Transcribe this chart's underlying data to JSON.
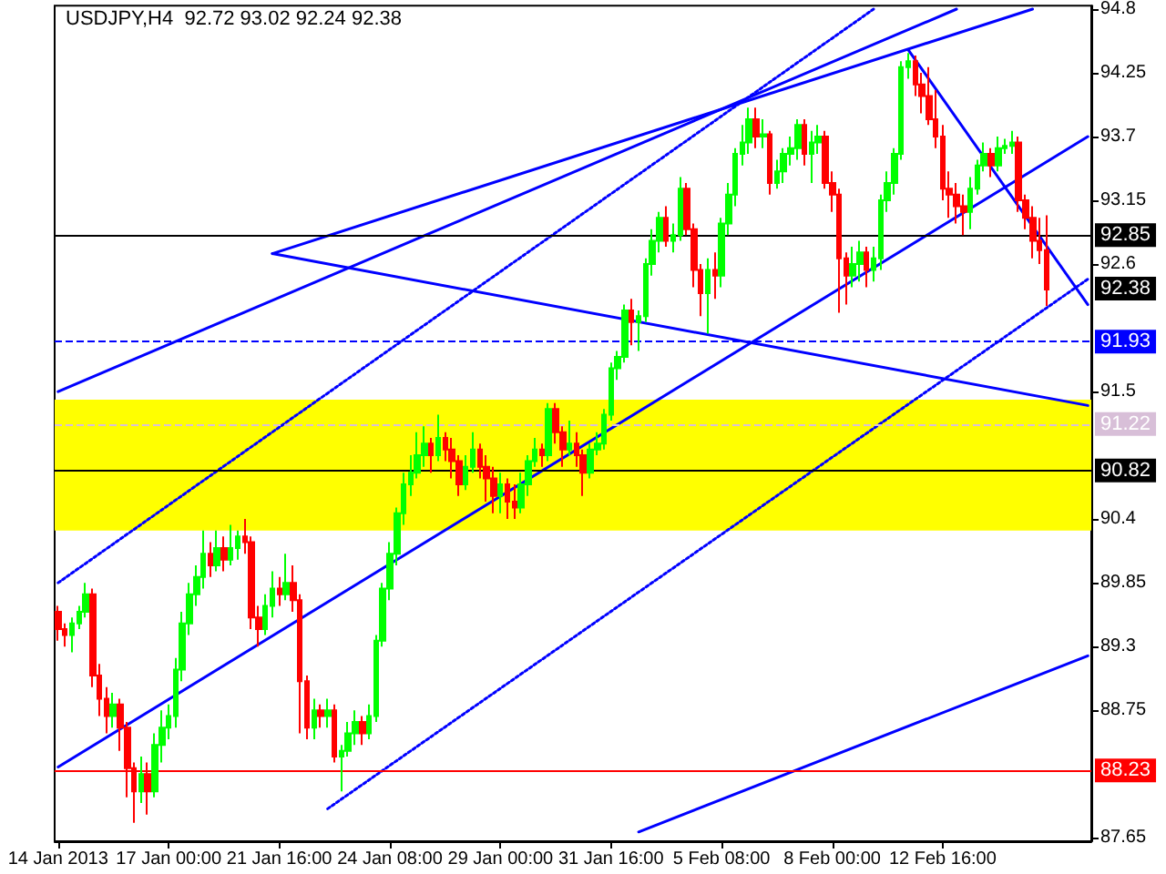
{
  "chart_data": {
    "type": "candlestick",
    "title": "USDJPY,H4  92.72 93.02 92.24 92.38",
    "categories": [
      "14 Jan 2013",
      null,
      null,
      null,
      null,
      null,
      null,
      null,
      null,
      null,
      null,
      null,
      null,
      null,
      null,
      null,
      "17 Jan 00:00",
      null,
      null,
      null,
      null,
      null,
      null,
      null,
      null,
      null,
      null,
      null,
      null,
      null,
      null,
      null,
      "21 Jan 16:00",
      null,
      null,
      null,
      null,
      null,
      null,
      null,
      null,
      null,
      null,
      null,
      null,
      null,
      null,
      null,
      "24 Jan 08:00",
      null,
      null,
      null,
      null,
      null,
      null,
      null,
      null,
      null,
      null,
      null,
      null,
      null,
      null,
      null,
      "29 Jan 00:00",
      null,
      null,
      null,
      null,
      null,
      null,
      null,
      null,
      null,
      null,
      null,
      null,
      null,
      null,
      null,
      "31 Jan 16:00",
      null,
      null,
      null,
      null,
      null,
      null,
      null,
      null,
      null,
      null,
      null,
      null,
      null,
      null,
      null,
      "5 Feb 08:00",
      null,
      null,
      null,
      null,
      null,
      null,
      null,
      null,
      null,
      null,
      null,
      null,
      null,
      null,
      null,
      "8 Feb 00:00",
      null,
      null,
      null,
      null,
      null,
      null,
      null,
      null,
      null,
      null,
      null,
      null,
      null,
      null,
      null,
      "12 Feb 16:00",
      null,
      null,
      null,
      null,
      null,
      null,
      null,
      null,
      null,
      null,
      null,
      null,
      null,
      null,
      null,
      null,
      null,
      null,
      null,
      null,
      null
    ],
    "ohlc": [
      [
        89.6,
        89.65,
        89.35,
        89.45
      ],
      [
        89.45,
        89.5,
        89.3,
        89.4
      ],
      [
        89.4,
        89.55,
        89.25,
        89.5
      ],
      [
        89.5,
        89.65,
        89.45,
        89.6
      ],
      [
        89.6,
        89.85,
        89.55,
        89.75
      ],
      [
        89.75,
        89.8,
        88.95,
        89.05
      ],
      [
        89.05,
        89.15,
        88.7,
        88.85
      ],
      [
        88.85,
        88.95,
        88.55,
        88.7
      ],
      [
        88.7,
        88.9,
        88.6,
        88.8
      ],
      [
        88.8,
        88.85,
        88.4,
        88.6
      ],
      [
        88.6,
        88.65,
        88.0,
        88.25
      ],
      [
        88.25,
        88.3,
        87.78,
        88.05
      ],
      [
        88.05,
        88.35,
        87.95,
        88.2
      ],
      [
        88.2,
        88.3,
        87.85,
        88.05
      ],
      [
        88.05,
        88.55,
        88.0,
        88.45
      ],
      [
        88.45,
        88.75,
        88.3,
        88.6
      ],
      [
        88.6,
        88.8,
        88.5,
        88.7
      ],
      [
        88.7,
        89.2,
        88.6,
        89.1
      ],
      [
        89.1,
        89.6,
        89.0,
        89.5
      ],
      [
        89.5,
        89.85,
        89.4,
        89.75
      ],
      [
        89.75,
        90.0,
        89.65,
        89.9
      ],
      [
        89.9,
        90.3,
        89.8,
        90.1
      ],
      [
        90.1,
        90.2,
        89.9,
        90.0
      ],
      [
        90.0,
        90.3,
        89.95,
        90.15
      ],
      [
        90.15,
        90.25,
        89.95,
        90.05
      ],
      [
        90.05,
        90.35,
        90.0,
        90.15
      ],
      [
        90.15,
        90.3,
        90.05,
        90.25
      ],
      [
        90.25,
        90.4,
        90.1,
        90.2
      ],
      [
        90.2,
        90.25,
        89.45,
        89.55
      ],
      [
        89.55,
        89.65,
        89.3,
        89.45
      ],
      [
        89.45,
        89.75,
        89.4,
        89.65
      ],
      [
        89.65,
        89.95,
        89.55,
        89.8
      ],
      [
        89.8,
        89.9,
        89.65,
        89.75
      ],
      [
        89.75,
        90.1,
        89.7,
        89.85
      ],
      [
        89.85,
        90.0,
        89.6,
        89.7
      ],
      [
        89.7,
        89.75,
        88.55,
        89.0
      ],
      [
        89.0,
        89.05,
        88.5,
        88.6
      ],
      [
        88.6,
        88.85,
        88.5,
        88.75
      ],
      [
        88.75,
        88.8,
        88.6,
        88.7
      ],
      [
        88.7,
        88.85,
        88.6,
        88.75
      ],
      [
        88.75,
        88.8,
        88.3,
        88.35
      ],
      [
        88.35,
        88.45,
        88.05,
        88.4
      ],
      [
        88.4,
        88.65,
        88.35,
        88.55
      ],
      [
        88.55,
        88.75,
        88.45,
        88.65
      ],
      [
        88.65,
        88.7,
        88.45,
        88.55
      ],
      [
        88.55,
        88.8,
        88.5,
        88.7
      ],
      [
        88.7,
        89.4,
        88.65,
        89.35
      ],
      [
        89.35,
        89.85,
        89.3,
        89.8
      ],
      [
        89.8,
        90.2,
        89.7,
        90.1
      ],
      [
        90.1,
        90.5,
        90.0,
        90.45
      ],
      [
        90.45,
        90.8,
        90.35,
        90.7
      ],
      [
        90.7,
        90.95,
        90.6,
        90.8
      ],
      [
        90.8,
        91.15,
        90.75,
        90.95
      ],
      [
        90.95,
        91.2,
        90.85,
        91.05
      ],
      [
        91.05,
        91.1,
        90.8,
        90.95
      ],
      [
        90.95,
        91.3,
        90.9,
        91.1
      ],
      [
        91.1,
        91.15,
        90.9,
        91.0
      ],
      [
        91.0,
        91.1,
        90.75,
        90.9
      ],
      [
        90.9,
        90.95,
        90.6,
        90.7
      ],
      [
        90.7,
        90.95,
        90.65,
        90.85
      ],
      [
        90.85,
        91.15,
        90.8,
        91.0
      ],
      [
        91.0,
        91.05,
        90.75,
        90.85
      ],
      [
        90.85,
        90.95,
        90.55,
        90.75
      ],
      [
        90.75,
        90.85,
        90.45,
        90.6
      ],
      [
        90.6,
        90.8,
        90.45,
        90.7
      ],
      [
        90.7,
        90.75,
        90.4,
        90.55
      ],
      [
        90.55,
        90.7,
        90.4,
        90.5
      ],
      [
        90.5,
        90.8,
        90.45,
        90.7
      ],
      [
        90.7,
        90.95,
        90.6,
        90.9
      ],
      [
        90.9,
        91.1,
        90.85,
        91.0
      ],
      [
        91.0,
        91.05,
        90.85,
        90.95
      ],
      [
        90.95,
        91.4,
        90.9,
        91.35
      ],
      [
        91.35,
        91.4,
        91.05,
        91.15
      ],
      [
        91.15,
        91.2,
        90.85,
        91.0
      ],
      [
        91.0,
        91.25,
        90.95,
        91.05
      ],
      [
        91.05,
        91.15,
        90.85,
        90.95
      ],
      [
        90.95,
        91.0,
        90.6,
        90.8
      ],
      [
        90.8,
        91.05,
        90.75,
        91.0
      ],
      [
        91.0,
        91.15,
        90.95,
        91.05
      ],
      [
        91.05,
        91.35,
        91.0,
        91.3
      ],
      [
        91.3,
        91.75,
        91.25,
        91.7
      ],
      [
        91.7,
        91.85,
        91.6,
        91.8
      ],
      [
        91.8,
        92.25,
        91.75,
        92.2
      ],
      [
        92.2,
        92.3,
        91.9,
        92.1
      ],
      [
        92.1,
        92.2,
        91.85,
        92.15
      ],
      [
        92.15,
        92.65,
        92.1,
        92.6
      ],
      [
        92.6,
        92.9,
        92.5,
        92.8
      ],
      [
        92.8,
        93.05,
        92.7,
        93.0
      ],
      [
        93.0,
        93.1,
        92.75,
        92.8
      ],
      [
        92.8,
        92.95,
        92.7,
        92.85
      ],
      [
        92.85,
        93.35,
        92.8,
        93.25
      ],
      [
        93.25,
        93.3,
        92.85,
        92.9
      ],
      [
        92.9,
        92.95,
        92.4,
        92.55
      ],
      [
        92.55,
        92.6,
        92.15,
        92.35
      ],
      [
        92.35,
        92.65,
        92.0,
        92.55
      ],
      [
        92.55,
        92.7,
        92.3,
        92.5
      ],
      [
        92.5,
        93.0,
        92.4,
        92.95
      ],
      [
        92.95,
        93.3,
        92.85,
        93.2
      ],
      [
        93.2,
        93.6,
        93.1,
        93.55
      ],
      [
        93.55,
        93.8,
        93.45,
        93.65
      ],
      [
        93.65,
        93.95,
        93.55,
        93.85
      ],
      [
        93.85,
        93.95,
        93.6,
        93.7
      ],
      [
        93.7,
        93.85,
        93.6,
        93.72
      ],
      [
        93.72,
        93.75,
        93.2,
        93.3
      ],
      [
        93.3,
        93.5,
        93.25,
        93.4
      ],
      [
        93.4,
        93.6,
        93.3,
        93.55
      ],
      [
        93.55,
        93.7,
        93.45,
        93.6
      ],
      [
        93.6,
        93.85,
        93.5,
        93.8
      ],
      [
        93.8,
        93.85,
        93.45,
        93.55
      ],
      [
        93.55,
        93.75,
        93.3,
        93.65
      ],
      [
        93.65,
        93.8,
        93.55,
        93.7
      ],
      [
        93.7,
        93.75,
        93.25,
        93.3
      ],
      [
        93.3,
        93.4,
        93.05,
        93.2
      ],
      [
        93.2,
        93.25,
        92.18,
        92.65
      ],
      [
        92.65,
        92.7,
        92.25,
        92.5
      ],
      [
        92.5,
        92.75,
        92.4,
        92.6
      ],
      [
        92.6,
        92.8,
        92.45,
        92.7
      ],
      [
        92.7,
        92.75,
        92.4,
        92.55
      ],
      [
        92.55,
        92.75,
        92.45,
        92.65
      ],
      [
        92.65,
        93.2,
        92.55,
        93.15
      ],
      [
        93.15,
        93.4,
        93.05,
        93.3
      ],
      [
        93.3,
        93.6,
        93.2,
        93.55
      ],
      [
        93.55,
        94.35,
        93.5,
        94.3
      ],
      [
        94.3,
        94.42,
        94.2,
        94.35
      ],
      [
        94.35,
        94.4,
        94.05,
        94.15
      ],
      [
        94.15,
        94.25,
        93.9,
        94.05
      ],
      [
        94.05,
        94.3,
        93.8,
        93.85
      ],
      [
        93.85,
        94.1,
        93.6,
        93.7
      ],
      [
        93.7,
        93.8,
        93.15,
        93.25
      ],
      [
        93.25,
        93.4,
        93.0,
        93.2
      ],
      [
        93.2,
        93.3,
        92.95,
        93.1
      ],
      [
        93.1,
        93.2,
        92.85,
        93.05
      ],
      [
        93.05,
        93.35,
        92.9,
        93.25
      ],
      [
        93.25,
        93.5,
        93.2,
        93.45
      ],
      [
        93.45,
        93.65,
        93.4,
        93.55
      ],
      [
        93.55,
        93.6,
        93.35,
        93.45
      ],
      [
        93.45,
        93.7,
        93.4,
        93.6
      ],
      [
        93.6,
        93.68,
        93.55,
        93.62
      ],
      [
        93.62,
        93.75,
        93.55,
        93.65
      ],
      [
        93.65,
        93.7,
        93.05,
        93.15
      ],
      [
        93.15,
        93.2,
        92.9,
        93.0
      ],
      [
        93.0,
        93.1,
        92.65,
        92.8
      ],
      [
        92.8,
        93.0,
        92.6,
        92.72
      ],
      [
        92.72,
        93.02,
        92.24,
        92.38
      ],
      null,
      null,
      null,
      null,
      null,
      null
    ],
    "colors": [
      "#ff0000",
      "#ff0000",
      "#00ff00",
      "#00ff00",
      "#00ff00",
      "#ff0000",
      "#ff0000",
      "#ff0000",
      "#00ff00",
      "#ff0000",
      "#ff0000",
      "#ff0000",
      "#00ff00",
      "#ff0000",
      "#00ff00",
      "#00ff00",
      "#00ff00",
      "#00ff00",
      "#00ff00",
      "#00ff00",
      "#00ff00",
      "#00ff00",
      "#ff0000",
      "#00ff00",
      "#ff0000",
      "#00ff00",
      "#00ff00",
      "#ff0000",
      "#ff0000",
      "#ff0000",
      "#00ff00",
      "#00ff00",
      "#ff0000",
      "#00ff00",
      "#ff0000",
      "#ff0000",
      "#ff0000",
      "#00ff00",
      "#ff0000",
      "#00ff00",
      "#ff0000",
      "#00ff00",
      "#00ff00",
      "#00ff00",
      "#ff0000",
      "#00ff00",
      "#00ff00",
      "#00ff00",
      "#00ff00",
      "#00ff00",
      "#00ff00",
      "#00ff00",
      "#00ff00",
      "#00ff00",
      "#ff0000",
      "#00ff00",
      "#ff0000",
      "#ff0000",
      "#ff0000",
      "#00ff00",
      "#00ff00",
      "#ff0000",
      "#ff0000",
      "#ff0000",
      "#00ff00",
      "#ff0000",
      "#ff0000",
      "#00ff00",
      "#00ff00",
      "#00ff00",
      "#ff0000",
      "#00ff00",
      "#ff0000",
      "#ff0000",
      "#00ff00",
      "#ff0000",
      "#ff0000",
      "#00ff00",
      "#00ff00",
      "#00ff00",
      "#00ff00",
      "#00ff00",
      "#00ff00",
      "#ff0000",
      "#00ff00",
      "#00ff00",
      "#00ff00",
      "#00ff00",
      "#ff0000",
      "#00ff00",
      "#00ff00",
      "#ff0000",
      "#ff0000",
      "#ff0000",
      "#00ff00",
      "#ff0000",
      "#00ff00",
      "#00ff00",
      "#00ff00",
      "#00ff00",
      "#00ff00",
      "#ff0000",
      "#00ff00",
      "#ff0000",
      "#00ff00",
      "#00ff00",
      "#00ff00",
      "#00ff00",
      "#ff0000",
      "#00ff00",
      "#00ff00",
      "#ff0000",
      "#ff0000",
      "#ff0000",
      "#ff0000",
      "#00ff00",
      "#00ff00",
      "#ff0000",
      "#00ff00",
      "#00ff00",
      "#00ff00",
      "#00ff00",
      "#00ff00",
      "#00ff00",
      "#ff0000",
      "#ff0000",
      "#ff0000",
      "#ff0000",
      "#ff0000",
      "#ff0000",
      "#ff0000",
      "#ff0000",
      "#00ff00",
      "#00ff00",
      "#00ff00",
      "#ff0000",
      "#00ff00",
      "#00ff00",
      "#00ff00",
      "#ff0000",
      "#ff0000",
      "#ff0000",
      "#ff0000",
      "#ff0000",
      null,
      null,
      null,
      null,
      null,
      null
    ],
    "ylim": [
      87.62,
      94.83
    ],
    "yticks": [
      87.65,
      88.75,
      89.3,
      89.85,
      90.4,
      91.5,
      92.6,
      93.15,
      93.7,
      94.25,
      94.8
    ],
    "ref_lines": [
      {
        "axis": "y",
        "value": 92.85,
        "label": "92.85",
        "color": "#000000",
        "line_style": "solid"
      },
      {
        "axis": "y",
        "value": 91.93,
        "label": "91.93",
        "color": "#0000ff",
        "line_style": "dashed"
      },
      {
        "axis": "y",
        "value": 91.22,
        "label": "91.22",
        "color": "#d8bfd8",
        "line_style": "dashed"
      },
      {
        "axis": "y",
        "value": 90.82,
        "label": "90.82",
        "color": "#000000",
        "line_style": "solid"
      },
      {
        "axis": "y",
        "value": 88.23,
        "label": "88.23",
        "color": "#ff0000",
        "line_style": "solid"
      }
    ],
    "annotations": [
      {
        "text": "92.38",
        "y": 92.38
      }
    ],
    "bands": [
      {
        "axis": "y",
        "from": 90.3,
        "to": 91.43,
        "color": "#ffff00"
      }
    ],
    "series": [
      {
        "type": "line",
        "color": "#0000ff",
        "line_style": "solid",
        "values": [
          91.5,
          null,
          null,
          null,
          null,
          null,
          null,
          null,
          null,
          null,
          null,
          null,
          null,
          null,
          null,
          null,
          null,
          null,
          null,
          null,
          null,
          null,
          null,
          null,
          null,
          null,
          null,
          null,
          null,
          null,
          null,
          null,
          null,
          null,
          null,
          null,
          null,
          null,
          null,
          null,
          null,
          null,
          null,
          null,
          null,
          null,
          null,
          null,
          null,
          null,
          null,
          null,
          null,
          null,
          null,
          null,
          null,
          null,
          null,
          null,
          null,
          null,
          null,
          null,
          null,
          null,
          null,
          null,
          null,
          null,
          null,
          null,
          null,
          null,
          null,
          null,
          null,
          null,
          null,
          null,
          null,
          null,
          null,
          null,
          null,
          null,
          null,
          null,
          null,
          null,
          null,
          null,
          null,
          null,
          null,
          null,
          null,
          null,
          null,
          null,
          null,
          null,
          null,
          null,
          null,
          null,
          null,
          null,
          null,
          null,
          null,
          null,
          null,
          null,
          null,
          null,
          null,
          null,
          null,
          null,
          null,
          null,
          null,
          null,
          null,
          null,
          null,
          null,
          null,
          null,
          94.8,
          null,
          null,
          null,
          null,
          null,
          null,
          null,
          null,
          null,
          null,
          null,
          null,
          null,
          null,
          null,
          null,
          null,
          null,
          null
        ]
      },
      {
        "type": "line",
        "color": "#0000ff",
        "line_style": "solid",
        "values": [
          null,
          null,
          null,
          null,
          null,
          null,
          null,
          null,
          null,
          null,
          null,
          null,
          null,
          null,
          null,
          null,
          null,
          null,
          null,
          null,
          null,
          null,
          null,
          null,
          null,
          null,
          null,
          null,
          null,
          null,
          null,
          null,
          null,
          null,
          null,
          null,
          null,
          null,
          null,
          null,
          null,
          null,
          null,
          null,
          null,
          null,
          null,
          null,
          null,
          null,
          null,
          null,
          null,
          null,
          null,
          null,
          null,
          null,
          null,
          null,
          null,
          null,
          null,
          null,
          null,
          null,
          null,
          null,
          null,
          null,
          null,
          null,
          null,
          null,
          null,
          null,
          null,
          null,
          null,
          null,
          null,
          null,
          null,
          null,
          87.7,
          null,
          null,
          null,
          null,
          null,
          null,
          null,
          null,
          null,
          null,
          null,
          null,
          null,
          null,
          null,
          null,
          null,
          null,
          null,
          null,
          null,
          null,
          null,
          null,
          null,
          null,
          null,
          null,
          null,
          null,
          null,
          null,
          null,
          null,
          null,
          null,
          null,
          null,
          null,
          null,
          null,
          null,
          null,
          null,
          null,
          null,
          null,
          null,
          null,
          null,
          null,
          null,
          null,
          null,
          null,
          null,
          null,
          null,
          null,
          null,
          null,
          null,
          null,
          null,
          89.22
        ]
      },
      {
        "type": "line",
        "color": "#0000ff",
        "line_style": "solid",
        "values": [
          null,
          null,
          null,
          null,
          null,
          null,
          null,
          null,
          null,
          null,
          null,
          null,
          null,
          null,
          null,
          null,
          null,
          null,
          null,
          null,
          null,
          null,
          null,
          null,
          null,
          null,
          null,
          null,
          null,
          null,
          null,
          null,
          null,
          null,
          null,
          null,
          null,
          null,
          null,
          null,
          null,
          null,
          null,
          null,
          null,
          null,
          null,
          null,
          null,
          null,
          null,
          null,
          null,
          null,
          null,
          null,
          null,
          null,
          null,
          null,
          null,
          null,
          null,
          null,
          null,
          null,
          null,
          null,
          null,
          null,
          null,
          null,
          null,
          null,
          null,
          null,
          null,
          null,
          null,
          null,
          null,
          null,
          null,
          null,
          null,
          null,
          null,
          null,
          null,
          null,
          null,
          null,
          null,
          null,
          null,
          null,
          null,
          null,
          null,
          null,
          null,
          null,
          null,
          null,
          null,
          null,
          null,
          null,
          null,
          null,
          null,
          null,
          null,
          null,
          null,
          null,
          null,
          null,
          null,
          null,
          null,
          null,
          null,
          94.45,
          null,
          null,
          null,
          null,
          null,
          null,
          null,
          null,
          null,
          null,
          null,
          null,
          null,
          null,
          null,
          null,
          null,
          null,
          null,
          null,
          null,
          null,
          null,
          null,
          null,
          92.25
        ]
      },
      {
        "type": "line",
        "color": "#0000ff",
        "line_style": "solid",
        "values": [
          null,
          null,
          null,
          null,
          null,
          null,
          null,
          null,
          null,
          null,
          null,
          null,
          null,
          null,
          null,
          null,
          null,
          null,
          null,
          null,
          null,
          null,
          null,
          null,
          null,
          null,
          null,
          null,
          null,
          null,
          null,
          92.69,
          null,
          null,
          null,
          null,
          null,
          null,
          null,
          null,
          null,
          null,
          null,
          null,
          null,
          null,
          null,
          null,
          null,
          null,
          null,
          null,
          null,
          null,
          null,
          null,
          null,
          null,
          null,
          null,
          null,
          null,
          null,
          null,
          null,
          null,
          null,
          null,
          null,
          null,
          null,
          null,
          null,
          null,
          null,
          null,
          null,
          null,
          null,
          null,
          null,
          null,
          null,
          null,
          null,
          null,
          null,
          null,
          null,
          null,
          null,
          null,
          null,
          null,
          null,
          null,
          null,
          null,
          null,
          null,
          null,
          null,
          null,
          null,
          null,
          null,
          null,
          null,
          null,
          null,
          null,
          null,
          null,
          null,
          null,
          null,
          null,
          null,
          null,
          null,
          null,
          null,
          null,
          null,
          null,
          null,
          null,
          null,
          null,
          null,
          null,
          null,
          null,
          null,
          null,
          null,
          null,
          null,
          null,
          null,
          null,
          94.8,
          null,
          null,
          null,
          null,
          null,
          null,
          null,
          null
        ]
      },
      {
        "type": "line",
        "color": "#0000ff",
        "line_style": "solid",
        "values": [
          null,
          null,
          null,
          null,
          null,
          null,
          null,
          null,
          null,
          null,
          null,
          null,
          null,
          null,
          null,
          null,
          null,
          null,
          null,
          null,
          null,
          null,
          null,
          null,
          null,
          null,
          null,
          null,
          null,
          null,
          null,
          92.69,
          null,
          null,
          null,
          null,
          null,
          null,
          null,
          null,
          null,
          null,
          null,
          null,
          null,
          null,
          null,
          null,
          null,
          null,
          null,
          null,
          null,
          null,
          null,
          null,
          null,
          null,
          null,
          null,
          null,
          null,
          null,
          null,
          null,
          null,
          null,
          null,
          null,
          null,
          null,
          null,
          null,
          null,
          null,
          null,
          null,
          null,
          null,
          null,
          null,
          null,
          null,
          null,
          null,
          null,
          null,
          null,
          null,
          null,
          null,
          null,
          null,
          null,
          null,
          null,
          null,
          null,
          null,
          null,
          null,
          null,
          null,
          null,
          null,
          null,
          null,
          null,
          null,
          null,
          null,
          null,
          null,
          null,
          null,
          null,
          null,
          null,
          null,
          null,
          null,
          null,
          null,
          null,
          null,
          null,
          null,
          null,
          null,
          null,
          null,
          null,
          null,
          null,
          null,
          null,
          null,
          null,
          null,
          null,
          null,
          null,
          null,
          null,
          null,
          null,
          null,
          null,
          null,
          91.38
        ]
      },
      {
        "type": "line",
        "color": "#0000ff",
        "line_style": "solid",
        "values": [
          88.26,
          null,
          null,
          null,
          null,
          null,
          null,
          null,
          null,
          null,
          null,
          null,
          null,
          null,
          null,
          null,
          null,
          null,
          null,
          null,
          null,
          null,
          null,
          null,
          null,
          null,
          null,
          null,
          null,
          null,
          null,
          null,
          null,
          null,
          null,
          null,
          null,
          null,
          null,
          null,
          null,
          null,
          null,
          null,
          null,
          null,
          null,
          null,
          null,
          null,
          null,
          null,
          null,
          null,
          null,
          null,
          null,
          null,
          null,
          null,
          null,
          null,
          null,
          null,
          null,
          null,
          null,
          null,
          null,
          null,
          null,
          null,
          null,
          null,
          null,
          null,
          null,
          null,
          null,
          null,
          null,
          null,
          null,
          null,
          null,
          null,
          null,
          null,
          null,
          null,
          null,
          null,
          null,
          null,
          null,
          null,
          null,
          null,
          null,
          null,
          null,
          null,
          null,
          null,
          null,
          null,
          null,
          null,
          null,
          null,
          null,
          null,
          null,
          null,
          null,
          null,
          null,
          null,
          null,
          null,
          null,
          null,
          null,
          null,
          null,
          null,
          null,
          null,
          null,
          null,
          null,
          null,
          null,
          null,
          null,
          null,
          null,
          null,
          null,
          null,
          null,
          null,
          null,
          null,
          null,
          null,
          null,
          null,
          null,
          93.7
        ]
      },
      {
        "type": "line",
        "color": "#0000ff",
        "line_style": "dotted",
        "values": [
          89.85,
          null,
          null,
          null,
          null,
          null,
          null,
          null,
          null,
          null,
          null,
          null,
          null,
          null,
          null,
          null,
          null,
          null,
          null,
          null,
          null,
          null,
          null,
          null,
          null,
          null,
          null,
          null,
          null,
          null,
          null,
          null,
          null,
          null,
          null,
          null,
          null,
          null,
          null,
          null,
          null,
          null,
          null,
          null,
          null,
          null,
          null,
          null,
          null,
          null,
          null,
          null,
          null,
          null,
          null,
          null,
          null,
          null,
          null,
          null,
          null,
          null,
          null,
          null,
          null,
          null,
          null,
          null,
          null,
          null,
          null,
          null,
          null,
          null,
          null,
          null,
          null,
          null,
          null,
          null,
          null,
          null,
          null,
          null,
          null,
          null,
          null,
          null,
          null,
          null,
          null,
          null,
          null,
          null,
          null,
          null,
          null,
          null,
          null,
          null,
          null,
          null,
          null,
          null,
          null,
          null,
          null,
          null,
          null,
          null,
          null,
          null,
          null,
          null,
          null,
          null,
          null,
          null,
          94.8,
          null,
          null,
          null,
          null,
          null,
          null,
          null,
          null,
          null,
          null,
          null,
          null,
          null,
          null,
          null,
          null,
          null,
          null,
          null,
          null,
          null,
          null,
          null,
          null,
          null,
          null,
          null,
          null,
          null,
          null,
          null
        ]
      },
      {
        "type": "line",
        "color": "#0000ff",
        "line_style": "dotted",
        "values": [
          null,
          null,
          null,
          null,
          null,
          null,
          null,
          null,
          null,
          null,
          null,
          null,
          null,
          null,
          null,
          null,
          null,
          null,
          null,
          null,
          null,
          null,
          null,
          null,
          null,
          null,
          null,
          null,
          null,
          null,
          null,
          null,
          null,
          null,
          null,
          null,
          null,
          null,
          null,
          87.9,
          null,
          null,
          null,
          null,
          null,
          null,
          null,
          null,
          null,
          null,
          null,
          null,
          null,
          null,
          null,
          null,
          null,
          null,
          null,
          null,
          null,
          null,
          null,
          null,
          null,
          null,
          null,
          null,
          null,
          null,
          null,
          null,
          null,
          null,
          null,
          null,
          null,
          null,
          null,
          null,
          null,
          null,
          null,
          null,
          null,
          null,
          null,
          null,
          null,
          null,
          null,
          null,
          null,
          null,
          null,
          null,
          null,
          null,
          null,
          null,
          null,
          null,
          null,
          null,
          null,
          null,
          null,
          null,
          null,
          null,
          null,
          null,
          null,
          null,
          null,
          null,
          null,
          null,
          null,
          null,
          null,
          null,
          null,
          null,
          null,
          null,
          null,
          null,
          null,
          null,
          null,
          null,
          null,
          null,
          null,
          null,
          null,
          null,
          null,
          null,
          null,
          null,
          null,
          null,
          null,
          null,
          null,
          null,
          null,
          92.47
        ]
      }
    ]
  }
}
